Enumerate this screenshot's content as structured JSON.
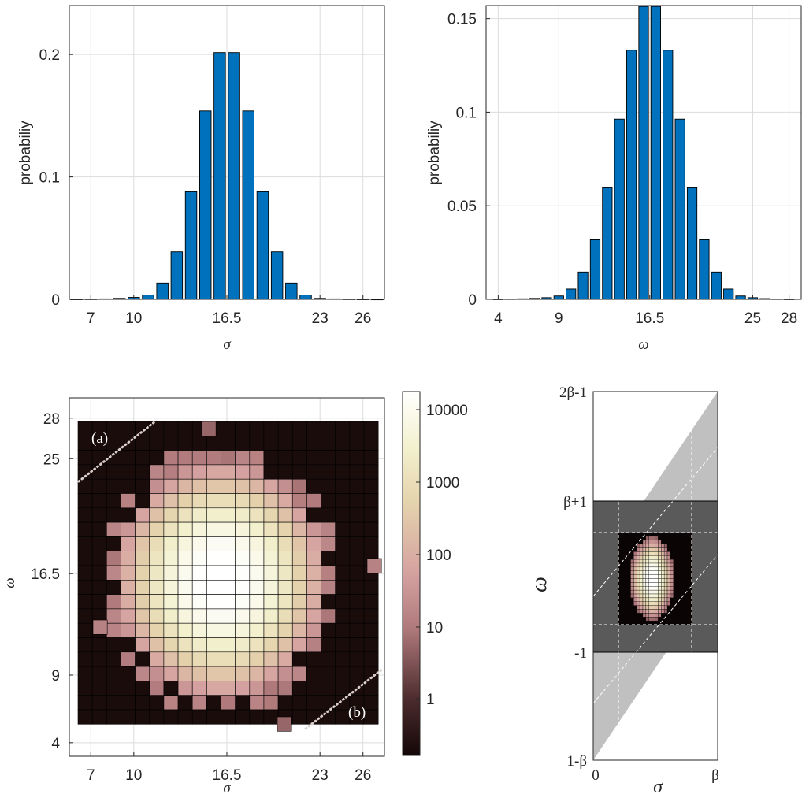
{
  "colors": {
    "bar_fill": "#0072bd",
    "bar_edge": "#000000",
    "axis": "#262626",
    "grid": "#dcdcdc",
    "light_region": "#c0c0c0",
    "dark_region": "#5a5a5a",
    "heat_background": "#1b0a0a"
  },
  "chart_data": [
    {
      "id": "sigma-histogram",
      "type": "bar",
      "xlabel": "σ",
      "ylabel": "probabiliy",
      "xticks": [
        7,
        10,
        16.5,
        23,
        26
      ],
      "yticks": [
        0,
        0.1,
        0.2
      ],
      "yticklabels": [
        "0",
        "0.1",
        "0.2"
      ],
      "xlim": [
        5.5,
        27.5
      ],
      "ylim": [
        0,
        0.24
      ],
      "x": [
        6,
        7,
        8,
        9,
        10,
        11,
        12,
        13,
        14,
        15,
        16,
        17,
        18,
        19,
        20,
        21,
        22,
        23,
        24,
        25,
        26,
        27
      ],
      "values": [
        0.0001,
        0.0002,
        0.0004,
        0.0008,
        0.0016,
        0.0035,
        0.0133,
        0.0388,
        0.0879,
        0.1539,
        0.2016,
        0.2016,
        0.1539,
        0.0879,
        0.0388,
        0.0133,
        0.0035,
        0.0008,
        0.0004,
        0.0002,
        0.0001,
        0.0
      ]
    },
    {
      "id": "omega-histogram",
      "type": "bar",
      "xlabel": "ω",
      "ylabel": "probabiliy",
      "xticks": [
        4,
        9,
        16.5,
        25,
        28
      ],
      "yticks": [
        0,
        0.05,
        0.1,
        0.15
      ],
      "yticklabels": [
        "0",
        "0.05",
        "0.1",
        "0.15"
      ],
      "xlim": [
        3,
        29
      ],
      "ylim": [
        0,
        0.157
      ],
      "x": [
        4,
        5,
        6,
        7,
        8,
        9,
        10,
        11,
        12,
        13,
        14,
        15,
        16,
        17,
        18,
        19,
        20,
        21,
        22,
        23,
        24,
        25,
        26,
        27,
        28
      ],
      "values": [
        0.0001,
        0.0002,
        0.0003,
        0.0005,
        0.0009,
        0.0018,
        0.0055,
        0.0146,
        0.0318,
        0.0596,
        0.0963,
        0.1331,
        0.1565,
        0.1565,
        0.1331,
        0.0963,
        0.0596,
        0.0318,
        0.0146,
        0.0055,
        0.0018,
        0.0009,
        0.0004,
        0.0002,
        0.0001
      ]
    },
    {
      "id": "joint-heatmap",
      "type": "heatmap",
      "xlabel": "σ",
      "ylabel": "ω",
      "xticks": [
        7,
        10,
        16.5,
        23,
        26
      ],
      "yticks": [
        4,
        9,
        16.5,
        25,
        28
      ],
      "xlim": [
        5.5,
        27.5
      ],
      "ylim": [
        3,
        29.5
      ],
      "colorbar_ticks": [
        "1",
        "10",
        "100",
        "1000",
        "10000"
      ],
      "colorscale": "log",
      "corner_labels": [
        "(a)",
        "(b)"
      ]
    },
    {
      "id": "domain-diagram",
      "type": "diagram",
      "xlabel": "σ",
      "ylabel": "ω",
      "xticks": [
        "0",
        "β"
      ],
      "yticks": [
        "2β-1",
        "β+1",
        "-1",
        "1-β"
      ]
    }
  ]
}
